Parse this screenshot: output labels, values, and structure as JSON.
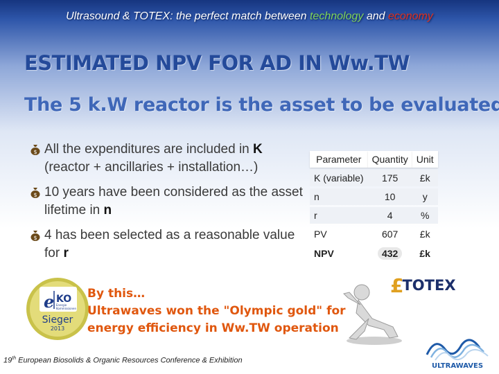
{
  "header": {
    "part1": "Ultrasound & TOTEX: the perfect match between ",
    "technology": "technology",
    "and": " and ",
    "economy": "economy"
  },
  "title": "ESTIMATED NPV FOR AD IN Ww.TW",
  "subtitle": "The 5 k.W reactor is the asset to be evaluated",
  "bullets": [
    {
      "pre": "All the expenditures are included in ",
      "bold": "K",
      "post": " (reactor + ancillaries + installation…)"
    },
    {
      "pre": "10 years have been considered as the asset lifetime in ",
      "bold": "n",
      "post": ""
    },
    {
      "pre": "4 has been selected as a reasonable value for ",
      "bold": "r",
      "post": ""
    }
  ],
  "table": {
    "headers": [
      "Parameter",
      "Quantity",
      "Unit"
    ],
    "rows": [
      {
        "param": "K (variable)",
        "qty": "175",
        "unit": "£k"
      },
      {
        "param": "n",
        "qty": "10",
        "unit": "y"
      },
      {
        "param": "r",
        "qty": "4",
        "unit": "%"
      },
      {
        "param": "PV",
        "qty": "607",
        "unit": "£k"
      },
      {
        "param": "NPV",
        "qty": "432",
        "unit": "£k"
      }
    ]
  },
  "totex": {
    "symbol": "£",
    "label": "TOTEX"
  },
  "award": {
    "line1": "By this…",
    "line2": "Ultrawaves won the \"Olympic gold\" for",
    "line3": "energy efficiency in Ww.TW operation"
  },
  "badge": {
    "e": "e",
    "ko": "KO",
    "small1": "Energie",
    "small2": "Kommissionen",
    "sieger": "Sieger",
    "year": "2013"
  },
  "footer": {
    "ordinal": "19",
    "sup": "th",
    "text": " European Biosolids & Organic Resources Conference & Exhibition"
  },
  "logo": {
    "text": "ULTRAWAVES"
  },
  "colors": {
    "title": "#244a9a",
    "subtitle": "#3f67b8",
    "award": "#e0570e",
    "technology": "#7fd35a",
    "economy": "#e0301e"
  }
}
